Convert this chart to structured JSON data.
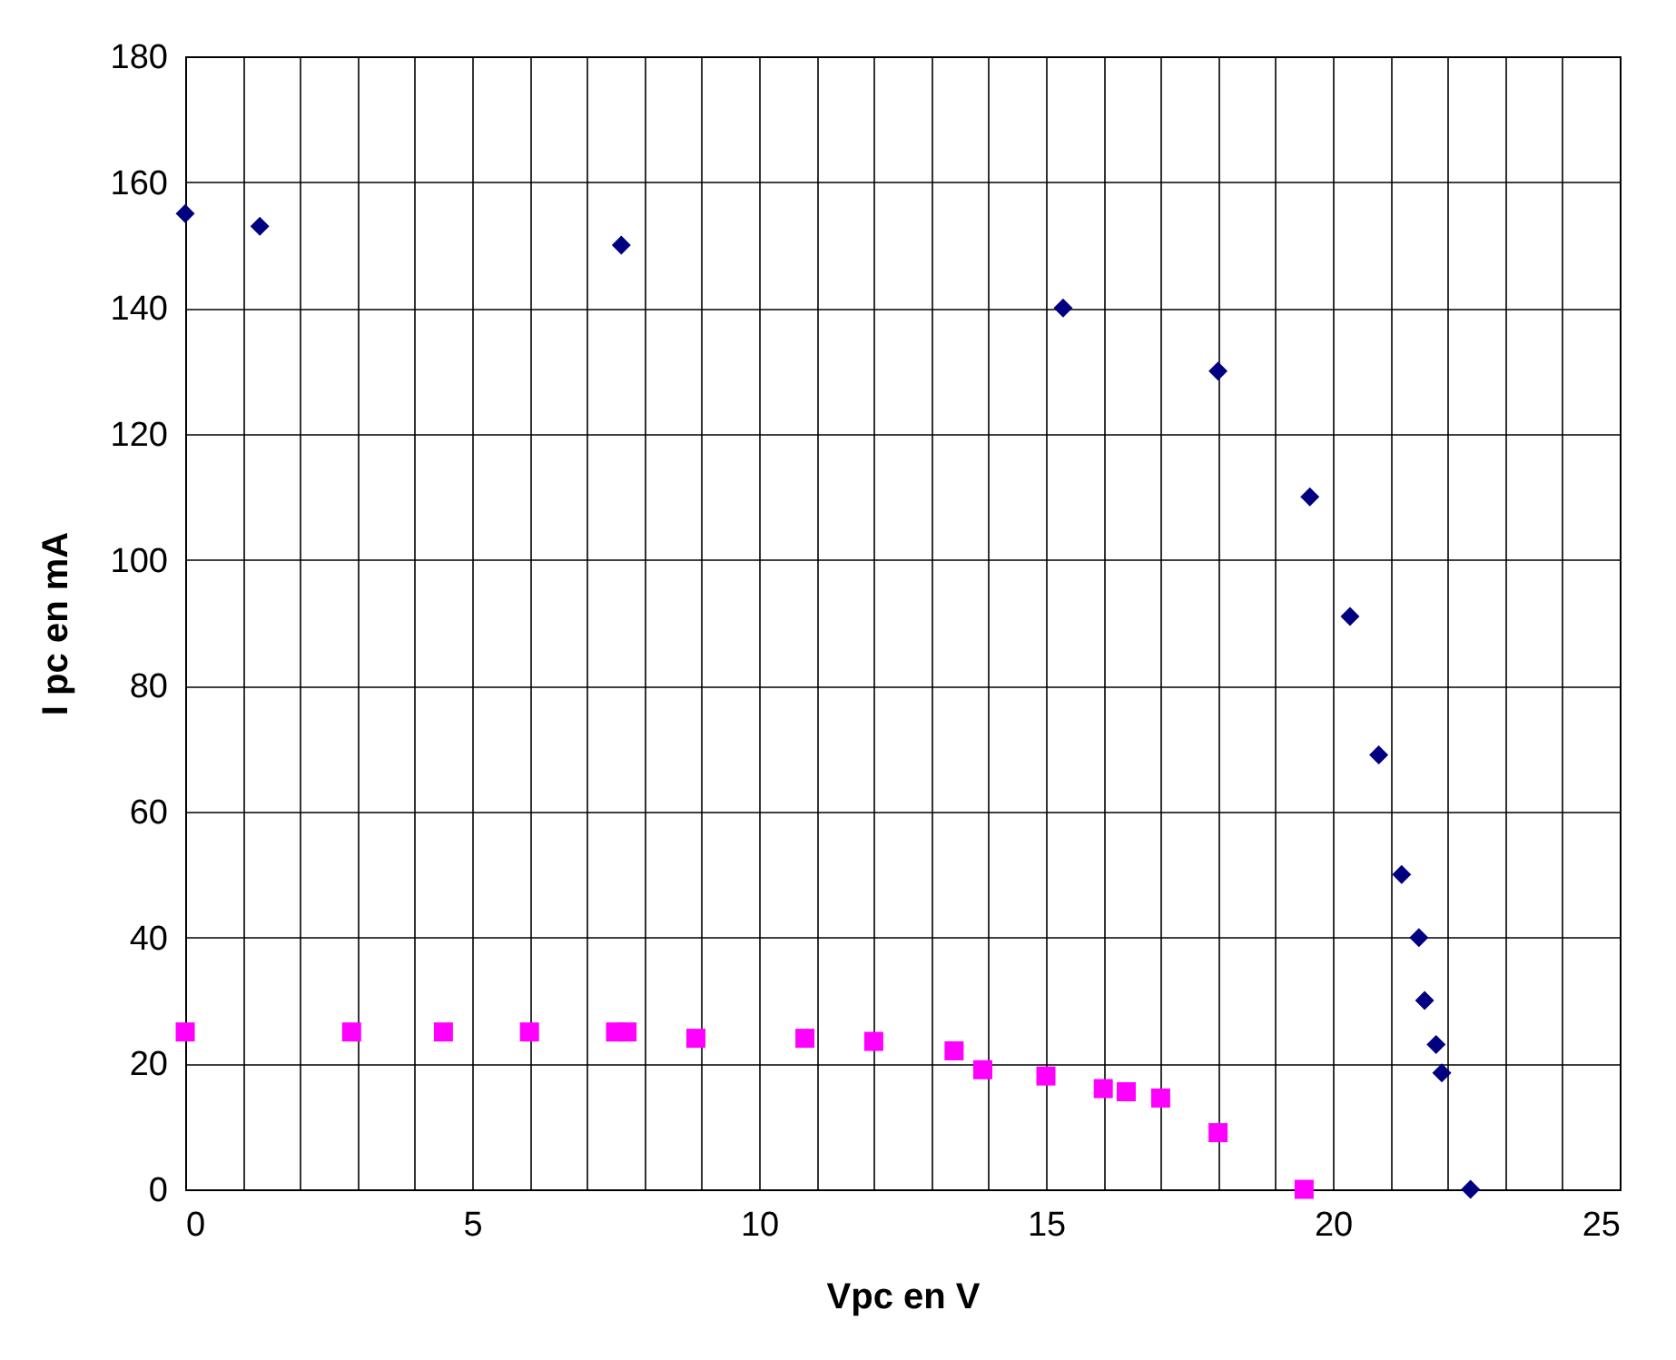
{
  "chart_data": {
    "type": "scatter",
    "xlabel": "Vpc en V",
    "ylabel": "I pc en mA",
    "xlim": [
      0,
      25
    ],
    "ylim": [
      0,
      180
    ],
    "xticks": [
      0,
      {
        "value": 1,
        "label": null
      },
      {
        "value": 2,
        "label": null
      },
      {
        "value": 3,
        "label": null
      },
      {
        "value": 4,
        "label": null
      },
      5,
      {
        "value": 6,
        "label": null
      },
      {
        "value": 7,
        "label": null
      },
      {
        "value": 8,
        "label": null
      },
      {
        "value": 9,
        "label": null
      },
      10,
      {
        "value": 11,
        "label": null
      },
      {
        "value": 12,
        "label": null
      },
      {
        "value": 13,
        "label": null
      },
      {
        "value": 14,
        "label": null
      },
      15,
      {
        "value": 16,
        "label": null
      },
      {
        "value": 17,
        "label": null
      },
      {
        "value": 18,
        "label": null
      },
      {
        "value": 19,
        "label": null
      },
      20,
      {
        "value": 21,
        "label": null
      },
      {
        "value": 22,
        "label": null
      },
      {
        "value": 23,
        "label": null
      },
      {
        "value": 24,
        "label": null
      },
      25
    ],
    "yticks": [
      0,
      20,
      40,
      60,
      80,
      100,
      120,
      140,
      160,
      180
    ],
    "grid": true,
    "series": [
      {
        "color": "#000080",
        "marker": "diamond",
        "x": [
          0,
          1.3,
          7.6,
          15.3,
          18.0,
          19.6,
          20.3,
          20.8,
          21.2,
          21.5,
          21.6,
          21.8,
          21.9,
          22.4
        ],
        "values": [
          155,
          153,
          150,
          140,
          130,
          110,
          91,
          69,
          50,
          40,
          30,
          23,
          18.5,
          0
        ]
      },
      {
        "color": "#ff00ff",
        "marker": "square",
        "x": [
          0,
          2.9,
          4.5,
          6.0,
          7.5,
          7.7,
          8.9,
          10.8,
          12.0,
          13.4,
          13.9,
          15.0,
          16.0,
          16.4,
          17.0,
          18.0,
          19.5
        ],
        "values": [
          25,
          25,
          25,
          25,
          25,
          25,
          24,
          24,
          23.5,
          22,
          19,
          18,
          16,
          15.5,
          14.5,
          9,
          0
        ]
      }
    ]
  }
}
